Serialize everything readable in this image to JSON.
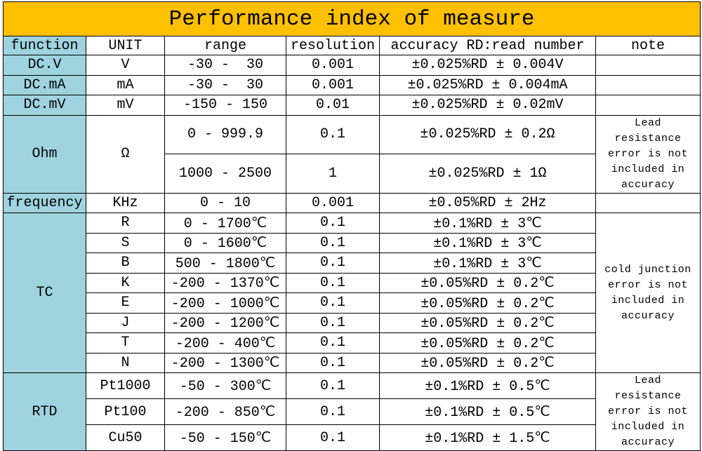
{
  "title": "Performance index of measure",
  "header": [
    "function",
    "UNIT",
    "range",
    "resolution",
    "accuracy RD:read number",
    "note"
  ],
  "groups": [
    {
      "function": "DC.V",
      "rows": [
        {
          "unit": "V",
          "range": "-30 -  30",
          "resolution": "0.001",
          "accuracy": "±0.025%RD ± 0.004V"
        }
      ]
    },
    {
      "function": "DC.mA",
      "rows": [
        {
          "unit": "mA",
          "range": "-30 -  30",
          "resolution": "0.001",
          "accuracy": "±0.025%RD ± 0.004mA"
        }
      ]
    },
    {
      "function": "DC.mV",
      "rows": [
        {
          "unit": "mV",
          "range": "-150 - 150",
          "resolution": "0.01",
          "accuracy": "±0.025%RD ± 0.02mV"
        }
      ]
    },
    {
      "function": "Ohm",
      "unit": "Ω",
      "note": "Lead resistance error is not included in accuracy",
      "rows": [
        {
          "range": "0 - 999.9",
          "resolution": "0.1",
          "accuracy": "±0.025%RD ± 0.2Ω"
        },
        {
          "range": "1000 - 2500",
          "resolution": "1",
          "accuracy": "±0.025%RD ± 1Ω"
        }
      ]
    },
    {
      "function": "frequency",
      "rows": [
        {
          "unit": "KHz",
          "range": "0 - 10",
          "resolution": "0.001",
          "accuracy": "±0.05%RD ± 2Hz"
        }
      ]
    },
    {
      "function": "TC",
      "note": "cold junction error is not included in accuracy",
      "rows": [
        {
          "unit": "R",
          "range": "0 - 1700℃",
          "resolution": "0.1",
          "accuracy": "±0.1%RD ± 3℃"
        },
        {
          "unit": "S",
          "range": "0 - 1600℃",
          "resolution": "0.1",
          "accuracy": "±0.1%RD ± 3℃"
        },
        {
          "unit": "B",
          "range": "500 - 1800℃",
          "resolution": "0.1",
          "accuracy": "±0.1%RD ± 3℃"
        },
        {
          "unit": "K",
          "range": "-200 - 1370℃",
          "resolution": "0.1",
          "accuracy": "±0.05%RD ± 0.2℃"
        },
        {
          "unit": "E",
          "range": "-200 - 1000℃",
          "resolution": "0.1",
          "accuracy": "±0.05%RD ± 0.2℃"
        },
        {
          "unit": "J",
          "range": "-200 - 1200℃",
          "resolution": "0.1",
          "accuracy": "±0.05%RD ± 0.2℃"
        },
        {
          "unit": "T",
          "range": "-200 - 400℃",
          "resolution": "0.1",
          "accuracy": "±0.05%RD ± 0.2℃"
        },
        {
          "unit": "N",
          "range": "-200 - 1300℃",
          "resolution": "0.1",
          "accuracy": "±0.05%RD ± 0.2℃"
        }
      ]
    },
    {
      "function": "RTD",
      "note": "Lead resistance error is not included in accuracy",
      "rows": [
        {
          "unit": "Pt1000",
          "range": "-50 - 300℃",
          "resolution": "0.1",
          "accuracy": "±0.1%RD ± 0.5℃"
        },
        {
          "unit": "Pt100",
          "range": "-200 - 850℃",
          "resolution": "0.1",
          "accuracy": "±0.1%RD ± 0.5℃"
        },
        {
          "unit": "Cu50",
          "range": "-50 - 150℃",
          "resolution": "0.1",
          "accuracy": "±0.1%RD ± 1.5℃"
        }
      ]
    }
  ]
}
